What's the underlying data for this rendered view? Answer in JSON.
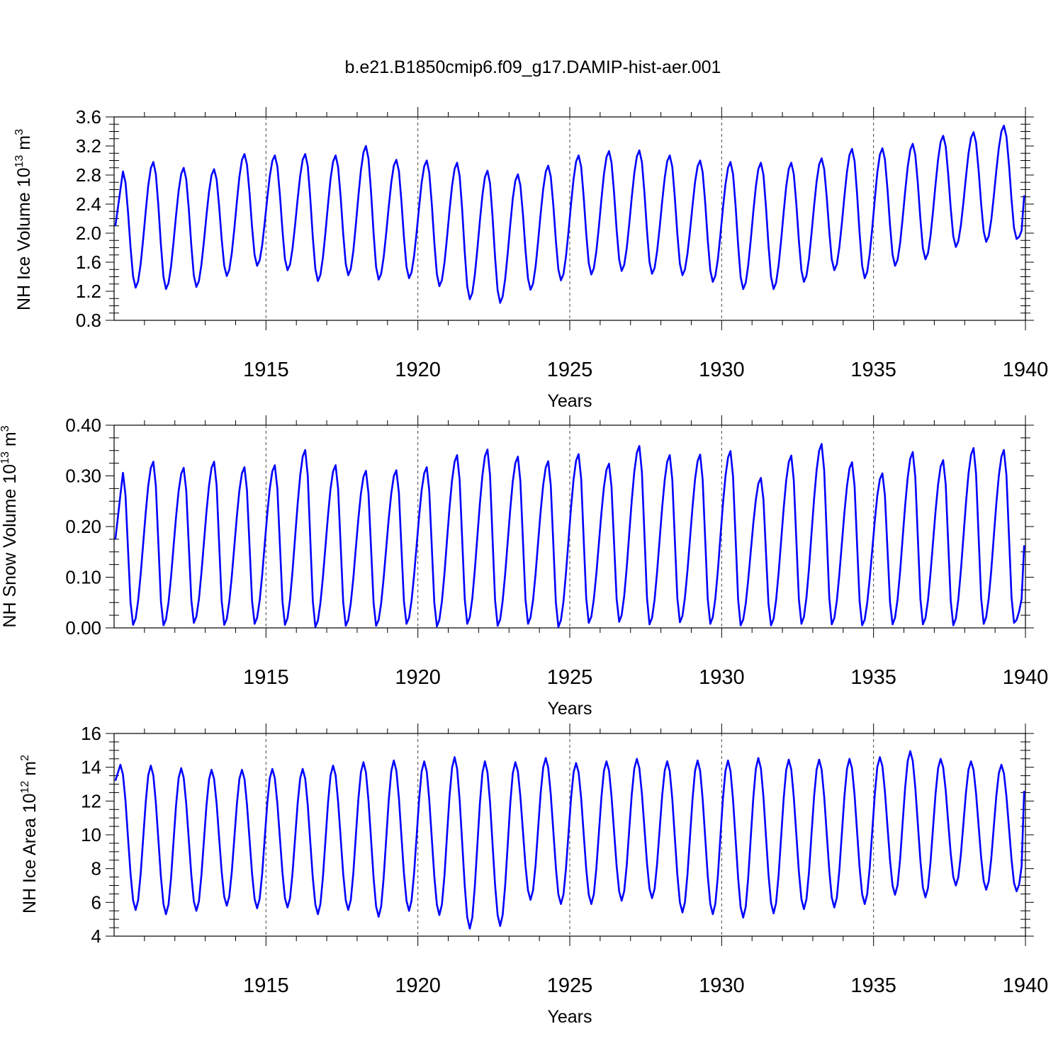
{
  "figure": {
    "title": "b.e21.B1850cmip6.f09_g17.DAMIP-hist-aer.001",
    "line_color": "#0000ff"
  },
  "chart_data": [
    {
      "type": "line",
      "id": "ice-volume",
      "ylabel_base": "NH Ice Volume 10",
      "ylabel_exp": "13",
      "ylabel_unit": " m",
      "ylabel_unit_exp": "3",
      "xlabel": "Years",
      "xlim": [
        1910.0,
        1940.0
      ],
      "ylim": [
        0.8,
        3.6
      ],
      "xticks": [
        1915,
        1920,
        1925,
        1930,
        1935,
        1940
      ],
      "xtick_labels": [
        "1915",
        "1920",
        "1925",
        "1930",
        "1935",
        "1940"
      ],
      "yticks": [
        0.8,
        1.2,
        1.6,
        2.0,
        2.4,
        2.8,
        3.2,
        3.6
      ],
      "ytick_labels": [
        "0.8",
        "1.2",
        "1.6",
        "2.0",
        "2.4",
        "2.8",
        "3.2",
        "3.6"
      ],
      "seasonal_cycle": "monthly values, peak in Mar–Apr, minimum in Sep",
      "annual_maxima": [
        2.85,
        2.98,
        2.9,
        2.88,
        3.09,
        3.07,
        3.09,
        3.07,
        3.2,
        3.01,
        3.0,
        2.97,
        2.86,
        2.81,
        2.93,
        3.07,
        3.13,
        3.14,
        3.07,
        3.0,
        2.98,
        2.97,
        2.97,
        3.03,
        3.16,
        3.17,
        3.23,
        3.34,
        3.39,
        3.48
      ],
      "annual_minima": [
        1.25,
        1.23,
        1.26,
        1.41,
        1.55,
        1.49,
        1.34,
        1.42,
        1.36,
        1.38,
        1.27,
        1.09,
        1.04,
        1.22,
        1.35,
        1.43,
        1.48,
        1.44,
        1.42,
        1.33,
        1.23,
        1.23,
        1.33,
        1.49,
        1.38,
        1.55,
        1.64,
        1.81,
        1.88,
        1.92
      ],
      "start_value": 2.1,
      "end_value": 2.52
    },
    {
      "type": "line",
      "id": "snow-volume",
      "ylabel_base": "NH Snow Volume 10",
      "ylabel_exp": "13",
      "ylabel_unit": " m",
      "ylabel_unit_exp": "3",
      "xlabel": "Years",
      "xlim": [
        1910.0,
        1940.0
      ],
      "ylim": [
        0.0,
        0.4
      ],
      "xticks": [
        1915,
        1920,
        1925,
        1930,
        1935,
        1940
      ],
      "xtick_labels": [
        "1915",
        "1920",
        "1925",
        "1930",
        "1935",
        "1940"
      ],
      "yticks": [
        0.0,
        0.1,
        0.2,
        0.3,
        0.4
      ],
      "ytick_labels": [
        "0.00",
        "0.10",
        "0.20",
        "0.30",
        "0.40"
      ],
      "seasonal_cycle": "monthly values, peak in Apr, minimum in Aug–Sep",
      "annual_maxima": [
        0.306,
        0.328,
        0.316,
        0.328,
        0.317,
        0.321,
        0.351,
        0.321,
        0.31,
        0.311,
        0.317,
        0.341,
        0.352,
        0.338,
        0.329,
        0.343,
        0.324,
        0.359,
        0.341,
        0.342,
        0.349,
        0.296,
        0.34,
        0.363,
        0.327,
        0.305,
        0.347,
        0.331,
        0.355,
        0.351
      ],
      "annual_minima": [
        0.006,
        0.005,
        0.01,
        0.006,
        0.008,
        0.006,
        0.002,
        0.004,
        0.004,
        0.008,
        0.003,
        0.008,
        0.004,
        0.008,
        0.002,
        0.01,
        0.012,
        0.007,
        0.011,
        0.008,
        0.005,
        0.005,
        0.008,
        0.007,
        0.005,
        0.007,
        0.007,
        0.005,
        0.008,
        0.01
      ],
      "start_value": 0.175,
      "end_value": 0.163
    },
    {
      "type": "line",
      "id": "ice-area",
      "ylabel_base": "NH Ice Area 10",
      "ylabel_exp": "12",
      "ylabel_unit": " m",
      "ylabel_unit_exp": "2",
      "xlabel": "Years",
      "xlim": [
        1910.0,
        1940.0
      ],
      "ylim": [
        4,
        16
      ],
      "xticks": [
        1915,
        1920,
        1925,
        1930,
        1935,
        1940
      ],
      "xtick_labels": [
        "1915",
        "1920",
        "1925",
        "1930",
        "1935",
        "1940"
      ],
      "yticks": [
        4,
        6,
        8,
        10,
        12,
        14,
        16
      ],
      "ytick_labels": [
        "4",
        "6",
        "8",
        "10",
        "12",
        "14",
        "16"
      ],
      "seasonal_cycle": "monthly values, peak in Mar, minimum in Sep",
      "annual_maxima": [
        14.15,
        14.1,
        13.95,
        13.85,
        13.85,
        13.9,
        13.9,
        14.1,
        14.3,
        14.4,
        14.35,
        14.6,
        14.35,
        14.3,
        14.55,
        14.25,
        14.35,
        14.5,
        14.35,
        14.4,
        14.4,
        14.55,
        14.45,
        14.45,
        14.5,
        14.6,
        14.95,
        14.5,
        14.35,
        14.15
      ],
      "annual_minima": [
        5.55,
        5.3,
        5.5,
        5.8,
        5.65,
        5.7,
        5.3,
        5.55,
        5.15,
        5.5,
        5.25,
        4.45,
        4.6,
        6.15,
        5.9,
        5.9,
        6.1,
        6.25,
        5.4,
        5.3,
        5.1,
        5.35,
        5.6,
        5.7,
        5.9,
        6.45,
        6.3,
        7.0,
        6.75,
        6.65
      ],
      "start_value": 13.2,
      "end_value": 12.6
    }
  ]
}
